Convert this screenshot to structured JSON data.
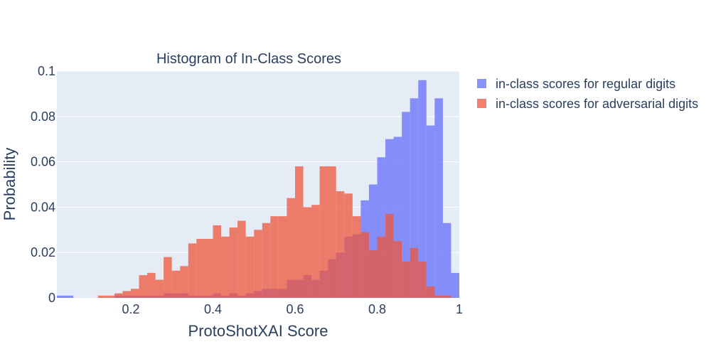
{
  "chart_data": {
    "type": "bar",
    "title": "Histogram of In-Class Scores",
    "xlabel": "ProtoShotXAI Score",
    "ylabel": "Probability",
    "xlim": [
      0.02,
      1.0
    ],
    "ylim": [
      0,
      0.1
    ],
    "bin_width": 0.02,
    "x_ticks": [
      0.2,
      0.4,
      0.6,
      0.8,
      1.0
    ],
    "x_tick_labels": [
      "0.2",
      "0.4",
      "0.6",
      "0.8",
      "1"
    ],
    "y_ticks": [
      0,
      0.02,
      0.04,
      0.06,
      0.08,
      0.1
    ],
    "y_tick_labels": [
      "0",
      "0.02",
      "0.04",
      "0.06",
      "0.08",
      "0.1"
    ],
    "legend_position": "top-right",
    "series": [
      {
        "name": "in-class scores for regular digits",
        "color": "#636efa",
        "bins": [
          [
            0.02,
            0.001
          ],
          [
            0.04,
            0.001
          ],
          [
            0.16,
            0.001
          ],
          [
            0.18,
            0.001
          ],
          [
            0.2,
            0.001
          ],
          [
            0.22,
            0.001
          ],
          [
            0.24,
            0.001
          ],
          [
            0.26,
            0.001
          ],
          [
            0.28,
            0.002
          ],
          [
            0.3,
            0.002
          ],
          [
            0.32,
            0.002
          ],
          [
            0.34,
            0.001
          ],
          [
            0.36,
            0.001
          ],
          [
            0.38,
            0.001
          ],
          [
            0.4,
            0.002
          ],
          [
            0.42,
            0.001
          ],
          [
            0.44,
            0.002
          ],
          [
            0.46,
            0.001
          ],
          [
            0.48,
            0.002
          ],
          [
            0.5,
            0.003
          ],
          [
            0.52,
            0.004
          ],
          [
            0.54,
            0.004
          ],
          [
            0.56,
            0.004
          ],
          [
            0.58,
            0.008
          ],
          [
            0.6,
            0.008
          ],
          [
            0.62,
            0.01
          ],
          [
            0.64,
            0.008
          ],
          [
            0.66,
            0.012
          ],
          [
            0.68,
            0.017
          ],
          [
            0.7,
            0.02
          ],
          [
            0.72,
            0.027
          ],
          [
            0.74,
            0.028
          ],
          [
            0.76,
            0.043
          ],
          [
            0.78,
            0.05
          ],
          [
            0.8,
            0.062
          ],
          [
            0.82,
            0.07
          ],
          [
            0.84,
            0.071
          ],
          [
            0.86,
            0.082
          ],
          [
            0.88,
            0.088
          ],
          [
            0.9,
            0.096
          ],
          [
            0.92,
            0.076
          ],
          [
            0.94,
            0.088
          ],
          [
            0.96,
            0.033
          ],
          [
            0.98,
            0.011
          ]
        ]
      },
      {
        "name": "in-class scores for adversarial digits",
        "color": "#ef553b",
        "bins": [
          [
            0.12,
            0.001
          ],
          [
            0.14,
            0.001
          ],
          [
            0.16,
            0.002
          ],
          [
            0.18,
            0.003
          ],
          [
            0.2,
            0.004
          ],
          [
            0.22,
            0.01
          ],
          [
            0.24,
            0.011
          ],
          [
            0.26,
            0.008
          ],
          [
            0.28,
            0.018
          ],
          [
            0.3,
            0.012
          ],
          [
            0.32,
            0.014
          ],
          [
            0.34,
            0.024
          ],
          [
            0.36,
            0.026
          ],
          [
            0.38,
            0.026
          ],
          [
            0.4,
            0.032
          ],
          [
            0.42,
            0.027
          ],
          [
            0.44,
            0.031
          ],
          [
            0.46,
            0.034
          ],
          [
            0.48,
            0.027
          ],
          [
            0.5,
            0.03
          ],
          [
            0.52,
            0.033
          ],
          [
            0.54,
            0.036
          ],
          [
            0.56,
            0.036
          ],
          [
            0.58,
            0.044
          ],
          [
            0.6,
            0.058
          ],
          [
            0.62,
            0.04
          ],
          [
            0.64,
            0.041
          ],
          [
            0.66,
            0.058
          ],
          [
            0.68,
            0.058
          ],
          [
            0.7,
            0.047
          ],
          [
            0.72,
            0.046
          ],
          [
            0.74,
            0.036
          ],
          [
            0.76,
            0.029
          ],
          [
            0.78,
            0.021
          ],
          [
            0.8,
            0.027
          ],
          [
            0.82,
            0.037
          ],
          [
            0.84,
            0.025
          ],
          [
            0.86,
            0.016
          ],
          [
            0.88,
            0.022
          ],
          [
            0.9,
            0.016
          ],
          [
            0.92,
            0.005
          ],
          [
            0.94,
            0.001
          ],
          [
            0.96,
            0.001
          ]
        ]
      }
    ]
  }
}
